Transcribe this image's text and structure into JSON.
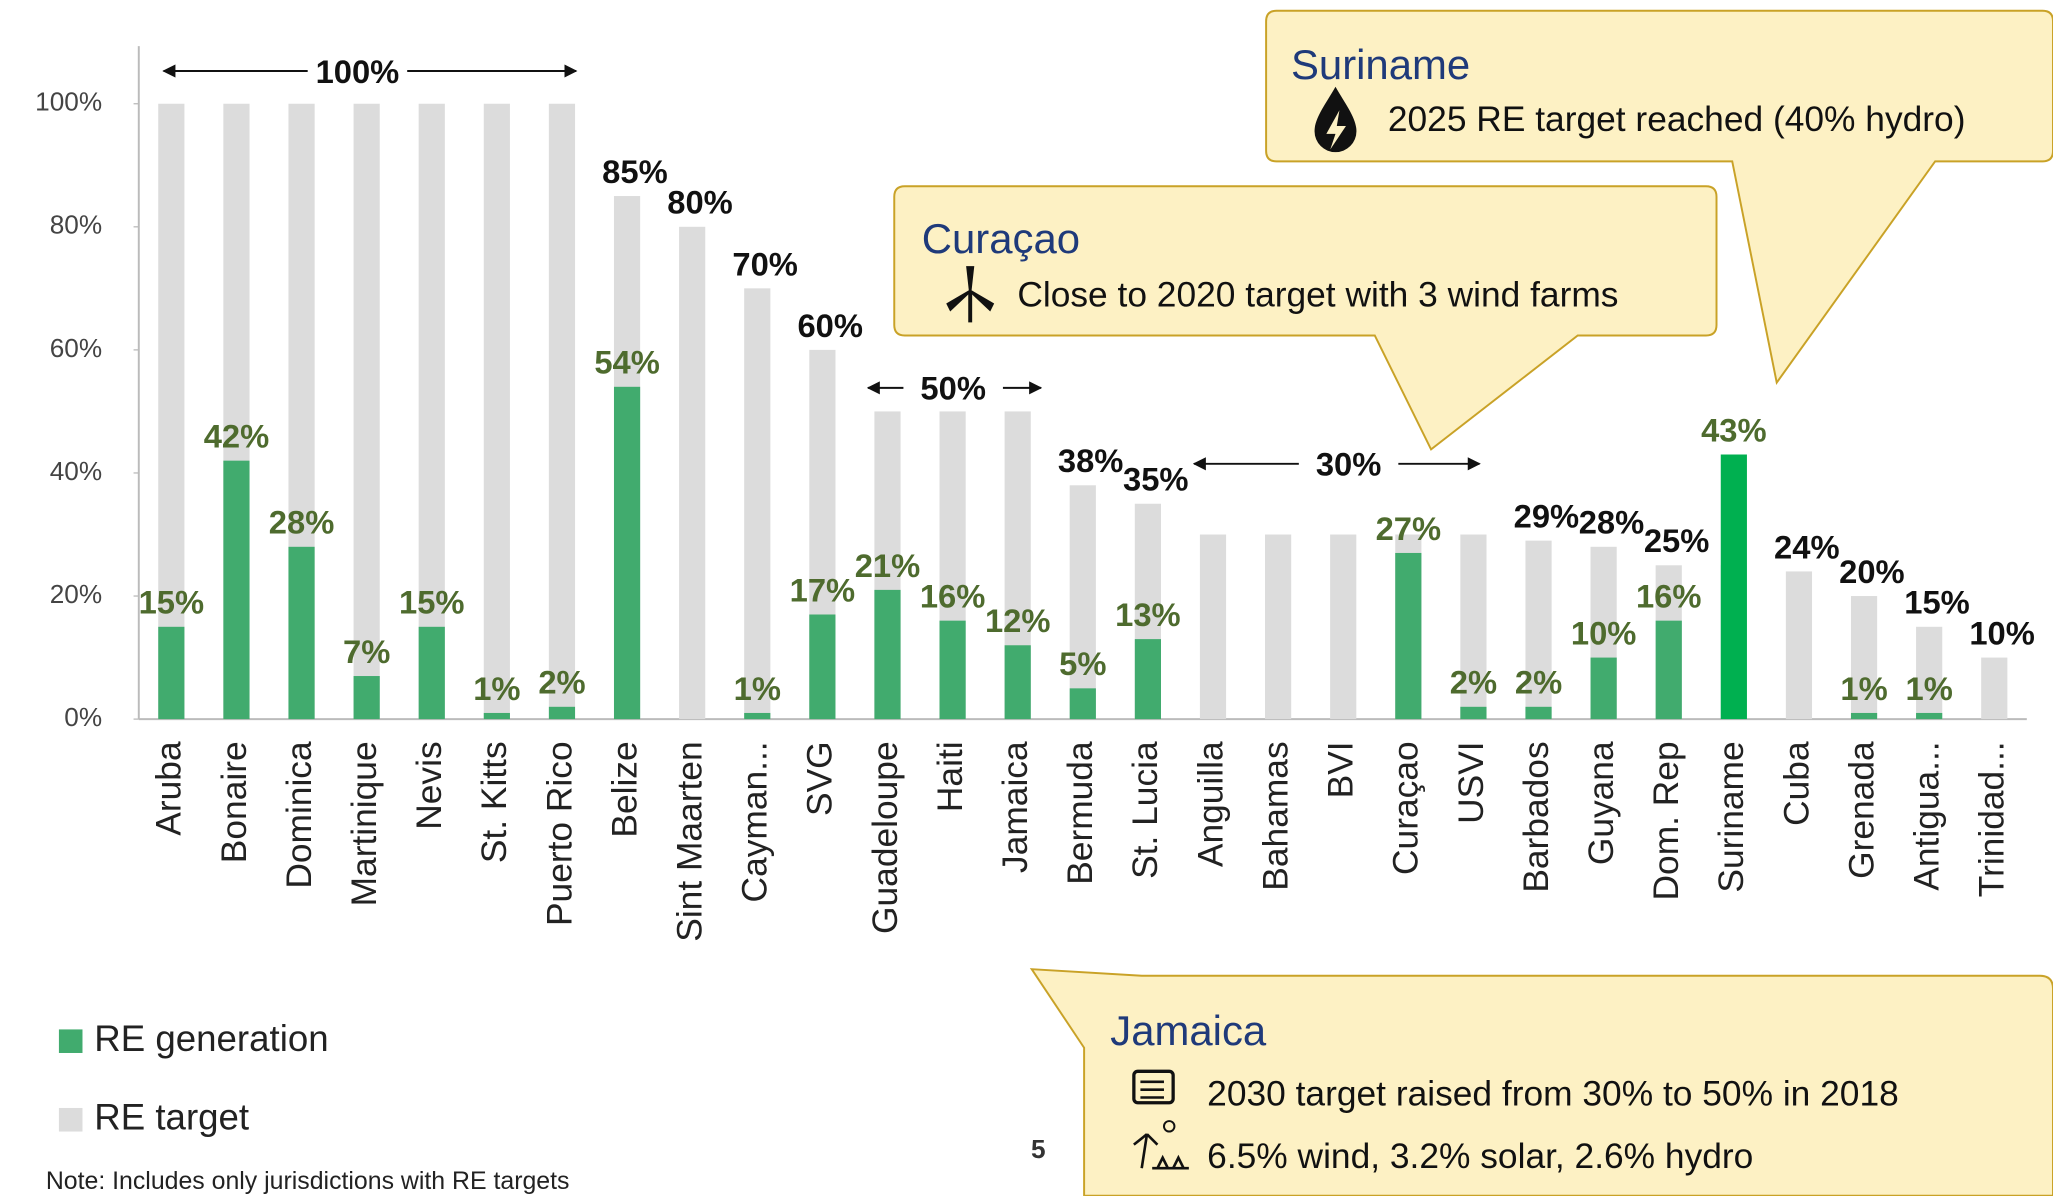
{
  "chart_data": {
    "type": "bar",
    "categories": [
      "Aruba",
      "Bonaire",
      "Dominica",
      "Martinique",
      "Nevis",
      "St. Kitts",
      "Puerto Rico",
      "Belize",
      "Sint Maarten",
      "Cayman...",
      "SVG",
      "Guadeloupe",
      "Haiti",
      "Jamaica",
      "Bermuda",
      "St. Lucia",
      "Anguilla",
      "Bahamas",
      "BVI",
      "Curaçao",
      "USVI",
      "Barbados",
      "Guyana",
      "Dom. Rep",
      "Suriname",
      "Cuba",
      "Grenada",
      "Antigua...",
      "Trinidad..."
    ],
    "series": [
      {
        "name": "RE generation",
        "color": "#41ab6e",
        "label_color": "#4e6b2e",
        "values": [
          15,
          42,
          28,
          7,
          15,
          1,
          2,
          54,
          null,
          1,
          17,
          21,
          16,
          12,
          5,
          13,
          null,
          null,
          null,
          27,
          2,
          2,
          10,
          16,
          43,
          null,
          1,
          1,
          null
        ],
        "value_labels": [
          "15%",
          "42%",
          "28%",
          "7%",
          "15%",
          "1%",
          "2%",
          "54%",
          null,
          "1%",
          "17%",
          "21%",
          "16%",
          "12%",
          "5%",
          "13%",
          null,
          null,
          null,
          "27%",
          "2%",
          "2%",
          "10%",
          "16%",
          "43%",
          null,
          "1%",
          "1%",
          null
        ]
      },
      {
        "name": "RE target",
        "color": "#dcdcdc",
        "label_color": "#111111",
        "values": [
          100,
          100,
          100,
          100,
          100,
          100,
          100,
          85,
          80,
          70,
          60,
          50,
          50,
          50,
          38,
          35,
          30,
          30,
          30,
          30,
          30,
          29,
          28,
          25,
          25,
          24,
          20,
          15,
          10
        ],
        "value_labels": [
          null,
          null,
          null,
          null,
          null,
          null,
          null,
          "85%",
          "80%",
          "70%",
          "60%",
          null,
          null,
          null,
          "38%",
          "35%",
          null,
          null,
          null,
          null,
          null,
          "29%",
          "28%",
          "25%",
          null,
          "24%",
          "20%",
          "15%",
          "10%"
        ]
      }
    ],
    "highlight": {
      "category": "Suriname",
      "color": "#00b050"
    },
    "group_labels": [
      "100%",
      "50%",
      "30%"
    ],
    "ylim": [
      0,
      109
    ],
    "yticks": [
      {
        "value": 0,
        "label": "0%"
      },
      {
        "value": 20,
        "label": "20%"
      },
      {
        "value": 40,
        "label": "40%"
      },
      {
        "value": 60,
        "label": "60%"
      },
      {
        "value": 80,
        "label": "80%"
      },
      {
        "value": 100,
        "label": "100%"
      }
    ],
    "grid": false,
    "legend": "bottom-left"
  },
  "callouts": [
    {
      "title": "Suriname",
      "lines": [
        "2025 RE target reached (40% hydro)"
      ]
    },
    {
      "title": "Curaçao",
      "lines": [
        "Close to 2020 target with 3 wind farms"
      ]
    },
    {
      "title": "Jamaica",
      "lines": [
        "2030 target raised from 30% to 50% in 2018",
        "6.5% wind, 3.2% solar, 2.6% hydro"
      ]
    }
  ],
  "note": "Note: Includes only jurisdictions with RE targets",
  "page_number": "5"
}
